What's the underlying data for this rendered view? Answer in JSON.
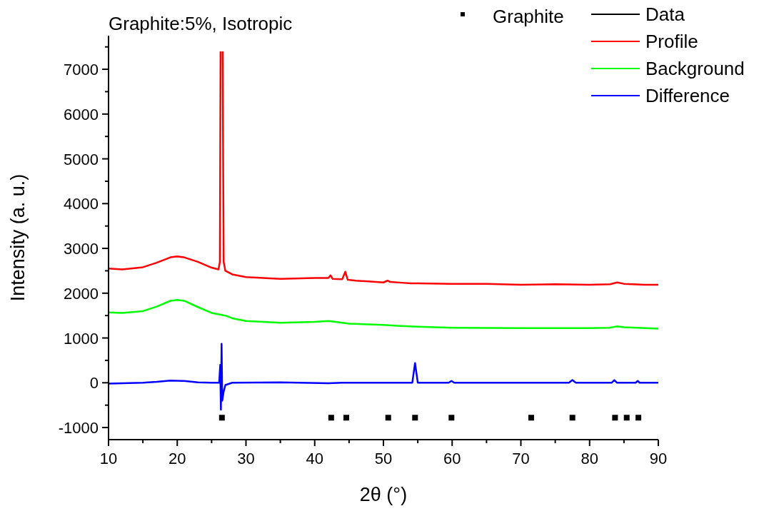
{
  "chart_data": {
    "type": "line",
    "title": "Graphite:5%, Isotropic",
    "xlabel": "2θ (°)",
    "ylabel": "Intensity (a. u.)",
    "xlim": [
      10,
      90
    ],
    "ylim": [
      -1270,
      7750
    ],
    "xticks": [
      10,
      {
        "value": 15,
        "label": null
      },
      20,
      {
        "value": 25,
        "label": null
      },
      30,
      {
        "value": 35,
        "label": null
      },
      40,
      {
        "value": 45,
        "label": null
      },
      50,
      {
        "value": 55,
        "label": null
      },
      60,
      {
        "value": 65,
        "label": null
      },
      70,
      {
        "value": 75,
        "label": null
      },
      80,
      {
        "value": 85,
        "label": null
      },
      90
    ],
    "yticks": [
      -1000,
      {
        "value": -500,
        "label": null
      },
      0,
      {
        "value": 500,
        "label": null
      },
      1000,
      {
        "value": 1500,
        "label": null
      },
      2000,
      {
        "value": 2500,
        "label": null
      },
      3000,
      {
        "value": 3500,
        "label": null
      },
      4000,
      {
        "value": 4500,
        "label": null
      },
      5000,
      {
        "value": 5500,
        "label": null
      },
      6000,
      {
        "value": 6500,
        "label": null
      },
      7000,
      {
        "value": 7500,
        "label": null
      }
    ],
    "grid": false,
    "legend": "top right",
    "line_style": "solid",
    "series": [
      {
        "name": "Graphite",
        "type": "scatter",
        "marker": "square",
        "color": "#000000",
        "x": [
          26.5,
          42.4,
          44.6,
          50.7,
          54.6,
          59.9,
          71.5,
          77.5,
          83.7,
          85.4,
          87.1
        ],
        "values": [
          -780,
          -780,
          -780,
          -780,
          -780,
          -780,
          -780,
          -780,
          -780,
          -780,
          -780
        ]
      },
      {
        "name": "Data",
        "color": "#000000"
      },
      {
        "name": "Profile",
        "color": "#ff0000",
        "x": [
          10,
          12,
          15,
          17,
          19,
          20,
          21,
          23,
          25,
          26,
          26.2,
          26.3,
          26.4,
          26.5,
          26.6,
          26.75,
          27,
          28,
          30,
          35,
          40,
          42,
          42.3,
          42.6,
          44,
          44.45,
          44.8,
          46,
          50,
          50.6,
          51,
          53,
          54,
          55,
          60,
          65,
          70,
          75,
          80,
          83,
          84,
          85,
          88,
          90
        ],
        "values": [
          2550,
          2530,
          2580,
          2680,
          2800,
          2820,
          2800,
          2700,
          2570,
          2530,
          2700,
          7400,
          null,
          null,
          7400,
          2700,
          2500,
          2420,
          2360,
          2320,
          2340,
          2340,
          2400,
          2320,
          2310,
          2480,
          2300,
          2280,
          2240,
          2280,
          2250,
          2230,
          2220,
          2220,
          2210,
          2210,
          2190,
          2200,
          2190,
          2200,
          2240,
          2210,
          2190,
          2190
        ]
      },
      {
        "name": "Background",
        "color": "#00ff00",
        "x": [
          10,
          12,
          15,
          17,
          19,
          20,
          21,
          23,
          25,
          27,
          28,
          30,
          35,
          40,
          42,
          45,
          50,
          52,
          55,
          60,
          70,
          80,
          83,
          84,
          85,
          90
        ],
        "values": [
          1570,
          1560,
          1600,
          1700,
          1830,
          1850,
          1830,
          1690,
          1560,
          1500,
          1440,
          1380,
          1340,
          1360,
          1380,
          1320,
          1290,
          1270,
          1250,
          1230,
          1220,
          1220,
          1230,
          1260,
          1240,
          1210
        ]
      },
      {
        "name": "Difference",
        "color": "#0000ff",
        "x": [
          10,
          12,
          15,
          17,
          19,
          21,
          23,
          25,
          26.1,
          26.25,
          26.35,
          26.45,
          26.55,
          26.75,
          27,
          28,
          35,
          42,
          44,
          50,
          54.2,
          54.6,
          55,
          59.5,
          59.9,
          60.3,
          70,
          77,
          77.5,
          78,
          83.2,
          83.6,
          84,
          86.7,
          87,
          87.3,
          90
        ],
        "values": [
          -20,
          -10,
          0,
          20,
          50,
          40,
          10,
          0,
          0,
          400,
          -600,
          870,
          -400,
          -200,
          -50,
          0,
          10,
          -10,
          0,
          0,
          0,
          440,
          0,
          0,
          40,
          0,
          0,
          0,
          60,
          0,
          0,
          60,
          0,
          0,
          40,
          0,
          0
        ]
      }
    ]
  }
}
